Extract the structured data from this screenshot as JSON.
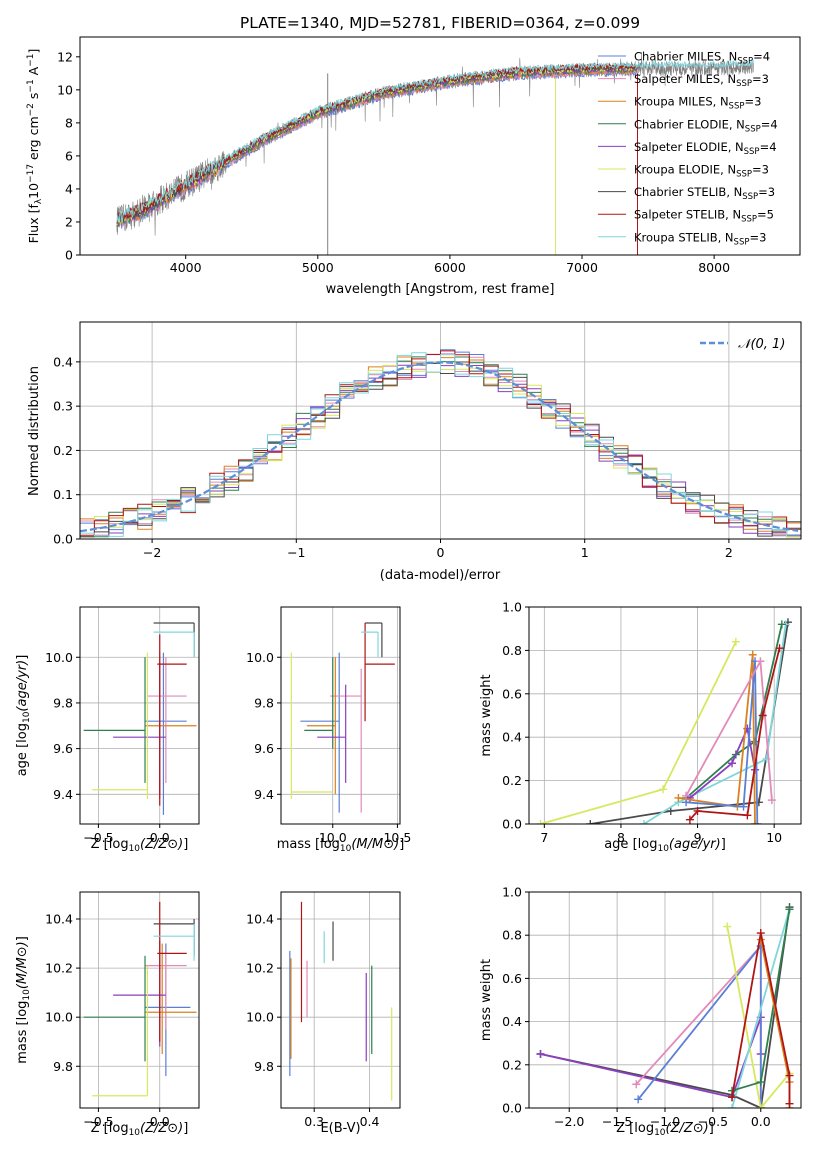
{
  "colors": {
    "chab_miles": "#5b7fd6",
    "salp_miles": "#e28ab9",
    "krou_miles": "#d9821f",
    "chab_elodie": "#2f7f4f",
    "salp_elodie": "#8a3fc0",
    "krou_elodie": "#d7e85e",
    "chab_stelib": "#4a4a4a",
    "salp_stelib": "#b01515",
    "krou_stelib": "#7fd6dc",
    "data": "#808080",
    "grid": "#b0b0b0",
    "normal": "#5b8fd6"
  },
  "chart_data": [
    {
      "id": "spectrum",
      "type": "line",
      "title": "PLATE=1340, MJD=52781, FIBERID=0364, z=0.099",
      "xlabel": "wavelength [Angstrom, rest frame]",
      "ylabel": "Flux [f_λ10^-17 erg cm^-2 s^-1 A^-1]",
      "xlim": [
        3200,
        8650
      ],
      "ylim": [
        0,
        13.2
      ],
      "xticks": [
        "4000",
        "5000",
        "6000",
        "7000",
        "8000"
      ],
      "yticks": [
        "0",
        "2",
        "4",
        "6",
        "8",
        "10",
        "12"
      ],
      "grid": false,
      "legend_position": "right",
      "legend": [
        "Chabrier MILES, N_SSP=4",
        "Salpeter MILES, N_SSP=3",
        "Kroupa MILES, N_SSP=3",
        "Chabrier ELODIE, N_SSP=4",
        "Salpeter ELODIE, N_SSP=4",
        "Kroupa ELODIE, N_SSP=3",
        "Chabrier STELIB, N_SSP=3",
        "Salpeter STELIB, N_SSP=5",
        "Kroupa STELIB, N_SSP=3"
      ],
      "continuum": {
        "x": [
          3500,
          3700,
          4000,
          4300,
          4600,
          5000,
          5500,
          6000,
          6500,
          7000,
          7500,
          8000,
          8300
        ],
        "y": [
          2.1,
          2.8,
          4.2,
          5.6,
          7.0,
          8.6,
          9.8,
          10.5,
          11.0,
          11.2,
          11.3,
          11.3,
          11.4
        ]
      }
    },
    {
      "id": "residuals",
      "type": "histogram",
      "xlabel": "(data-model)/error",
      "ylabel": "Normed distribution",
      "xlim": [
        -2.5,
        2.5
      ],
      "ylim": [
        0,
        0.49
      ],
      "xticks": [
        "−2",
        "−1",
        "0",
        "1",
        "2"
      ],
      "yticks": [
        "0.0",
        "0.1",
        "0.2",
        "0.3",
        "0.4"
      ],
      "grid": true,
      "legend_position": "top-right",
      "legend": [
        "𝒩(0, 1)"
      ]
    },
    {
      "id": "age_vs_Z",
      "type": "errorbar",
      "xlabel": "Z [log10(Z/Z⊙)]",
      "ylabel": "age [log10(age/yr)]",
      "xlim": [
        -0.65,
        0.32
      ],
      "ylim": [
        9.27,
        10.22
      ],
      "xticks": [
        "−0.5",
        "0.0"
      ],
      "yticks": [
        "9.4",
        "9.6",
        "9.8",
        "10.0"
      ],
      "grid": true,
      "points": [
        {
          "m": "chab_miles",
          "x": 0.03,
          "y": 9.72,
          "xe": [
            -0.12,
            0.22
          ],
          "ye": [
            9.31,
            10.02
          ]
        },
        {
          "m": "salp_miles",
          "x": 0.05,
          "y": 9.83,
          "xe": [
            -0.1,
            0.22
          ],
          "ye": [
            9.45,
            10.0
          ]
        },
        {
          "m": "krou_miles",
          "x": 0.0,
          "y": 9.7,
          "xe": [
            -0.12,
            0.3
          ],
          "ye": [
            9.38,
            10.02
          ]
        },
        {
          "m": "chab_elodie",
          "x": -0.12,
          "y": 9.68,
          "xe": [
            -0.62,
            -0.12
          ],
          "ye": [
            9.45,
            10.0
          ]
        },
        {
          "m": "salp_elodie",
          "x": 0.0,
          "y": 9.65,
          "xe": [
            -0.38,
            0.05
          ],
          "ye": [
            9.4,
            9.98
          ]
        },
        {
          "m": "krou_elodie",
          "x": -0.1,
          "y": 9.42,
          "xe": [
            -0.55,
            -0.1
          ],
          "ye": [
            9.38,
            10.02
          ]
        },
        {
          "m": "chab_stelib",
          "x": 0.28,
          "y": 10.15,
          "xe": [
            -0.05,
            0.28
          ],
          "ye": [
            10.0,
            10.15
          ]
        },
        {
          "m": "salp_stelib",
          "x": 0.0,
          "y": 9.97,
          "xe": [
            -0.02,
            0.22
          ],
          "ye": [
            9.35,
            10.1
          ]
        },
        {
          "m": "krou_stelib",
          "x": 0.28,
          "y": 10.11,
          "xe": [
            -0.05,
            0.28
          ],
          "ye": [
            10.0,
            10.11
          ]
        }
      ]
    },
    {
      "id": "age_vs_mass",
      "type": "errorbar",
      "xlabel": "mass [log10(M/M⊙)]",
      "ylabel": "",
      "xlim": [
        9.6,
        10.52
      ],
      "ylim": [
        9.27,
        10.22
      ],
      "xticks": [
        "10.0",
        "10.5"
      ],
      "yticks": [
        "9.4",
        "9.6",
        "9.8",
        "10.0"
      ],
      "grid": true,
      "points": [
        {
          "m": "chab_miles",
          "x": 10.05,
          "y": 9.72,
          "xe": [
            9.75,
            10.05
          ],
          "ye": [
            9.32,
            10.02
          ]
        },
        {
          "m": "salp_miles",
          "x": 10.22,
          "y": 9.83,
          "xe": [
            9.98,
            10.22
          ],
          "ye": [
            9.32,
            9.95
          ]
        },
        {
          "m": "krou_miles",
          "x": 10.02,
          "y": 9.7,
          "xe": [
            9.8,
            10.02
          ],
          "ye": [
            9.4,
            10.0
          ]
        },
        {
          "m": "chab_elodie",
          "x": 10.0,
          "y": 9.68,
          "xe": [
            9.78,
            10.0
          ],
          "ye": [
            9.6,
            10.0
          ]
        },
        {
          "m": "salp_elodie",
          "x": 10.1,
          "y": 9.65,
          "xe": [
            9.88,
            10.1
          ],
          "ye": [
            9.45,
            9.88
          ]
        },
        {
          "m": "krou_elodie",
          "x": 9.68,
          "y": 9.41,
          "xe": [
            9.68,
            10.0
          ],
          "ye": [
            9.38,
            10.02
          ]
        },
        {
          "m": "chab_stelib",
          "x": 10.38,
          "y": 10.15,
          "xe": [
            10.25,
            10.38
          ],
          "ye": [
            10.0,
            10.15
          ]
        },
        {
          "m": "salp_stelib",
          "x": 10.25,
          "y": 9.97,
          "xe": [
            10.25,
            10.48
          ],
          "ye": [
            9.72,
            10.15
          ]
        },
        {
          "m": "krou_stelib",
          "x": 10.35,
          "y": 10.11,
          "xe": [
            10.22,
            10.35
          ],
          "ye": [
            10.0,
            10.11
          ]
        }
      ]
    },
    {
      "id": "weight_vs_age",
      "type": "line",
      "xlabel": "age [log10(age/yr)]",
      "ylabel": "mass weight",
      "xlim": [
        6.8,
        10.35
      ],
      "ylim": [
        0,
        1.0
      ],
      "xticks": [
        "7",
        "8",
        "9",
        "10"
      ],
      "yticks": [
        "0.0",
        "0.2",
        "0.4",
        "0.6",
        "0.8",
        "1.0"
      ],
      "grid": true,
      "series": [
        {
          "m": "krou_elodie",
          "x": [
            6.95,
            8.55,
            9.5
          ],
          "y": [
            0.0,
            0.16,
            0.84
          ]
        },
        {
          "m": "chab_stelib",
          "x": [
            7.6,
            8.65,
            9.8,
            10.18
          ],
          "y": [
            0.0,
            0.06,
            0.1,
            0.93
          ]
        },
        {
          "m": "krou_stelib",
          "x": [
            8.3,
            8.75,
            9.9,
            10.15
          ],
          "y": [
            0.0,
            0.1,
            0.3,
            0.92
          ]
        },
        {
          "m": "chab_elodie",
          "x": [
            8.85,
            9.5,
            9.75,
            10.1
          ],
          "y": [
            0.12,
            0.32,
            0.38,
            0.92
          ]
        },
        {
          "m": "salp_elodie",
          "x": [
            8.9,
            9.45,
            9.65,
            9.75
          ],
          "y": [
            0.12,
            0.28,
            0.44,
            0.25
          ]
        },
        {
          "m": "krou_miles",
          "x": [
            8.75,
            9.52,
            9.72,
            9.75
          ],
          "y": [
            0.12,
            0.08,
            0.78,
            0.0
          ]
        },
        {
          "m": "chab_miles",
          "x": [
            8.85,
            9.6,
            9.75,
            9.78
          ],
          "y": [
            0.1,
            0.08,
            0.75,
            0.0
          ]
        },
        {
          "m": "salp_miles",
          "x": [
            8.85,
            9.82,
            9.97
          ],
          "y": [
            0.13,
            0.75,
            0.11
          ]
        },
        {
          "m": "salp_stelib",
          "x": [
            8.9,
            9.0,
            9.65,
            9.85,
            10.07
          ],
          "y": [
            0.02,
            0.06,
            0.04,
            0.5,
            0.81
          ]
        }
      ]
    },
    {
      "id": "mass_vs_Z",
      "type": "errorbar",
      "xlabel": "Z [log10(Z/Z⊙)]",
      "ylabel": "mass [log10(M/M⊙)]",
      "xlim": [
        -0.65,
        0.32
      ],
      "ylim": [
        9.63,
        10.51
      ],
      "xticks": [
        "−0.5",
        "0.0"
      ],
      "yticks": [
        "9.8",
        "10.0",
        "10.2",
        "10.4"
      ],
      "grid": true,
      "points": [
        {
          "m": "chab_miles",
          "x": 0.05,
          "y": 10.04,
          "xe": [
            -0.12,
            0.25
          ],
          "ye": [
            9.76,
            10.3
          ]
        },
        {
          "m": "salp_miles",
          "x": 0.05,
          "y": 10.21,
          "xe": [
            -0.12,
            0.22
          ],
          "ye": [
            9.95,
            10.26
          ]
        },
        {
          "m": "krou_miles",
          "x": 0.02,
          "y": 10.02,
          "xe": [
            -0.12,
            0.3
          ],
          "ye": [
            9.85,
            10.3
          ]
        },
        {
          "m": "chab_elodie",
          "x": -0.12,
          "y": 10.0,
          "xe": [
            -0.62,
            -0.12
          ],
          "ye": [
            9.82,
            10.25
          ]
        },
        {
          "m": "salp_elodie",
          "x": 0.0,
          "y": 10.09,
          "xe": [
            -0.38,
            0.05
          ],
          "ye": [
            9.88,
            10.31
          ]
        },
        {
          "m": "krou_elodie",
          "x": -0.1,
          "y": 9.68,
          "xe": [
            -0.55,
            -0.1
          ],
          "ye": [
            9.68,
            10.21
          ]
        },
        {
          "m": "chab_stelib",
          "x": 0.28,
          "y": 10.38,
          "xe": [
            -0.05,
            0.28
          ],
          "ye": [
            10.25,
            10.4
          ]
        },
        {
          "m": "salp_stelib",
          "x": 0.0,
          "y": 10.26,
          "xe": [
            -0.02,
            0.22
          ],
          "ye": [
            9.9,
            10.47
          ]
        },
        {
          "m": "krou_stelib",
          "x": 0.28,
          "y": 10.33,
          "xe": [
            -0.05,
            0.28
          ],
          "ye": [
            10.23,
            10.38
          ]
        }
      ]
    },
    {
      "id": "mass_vs_EBV",
      "type": "errorbar",
      "xlabel": "E(B-V)",
      "ylabel": "",
      "xlim": [
        0.24,
        0.455
      ],
      "ylim": [
        9.63,
        10.51
      ],
      "xticks": [
        "0.3",
        "0.4"
      ],
      "yticks": [
        "9.8",
        "10.0",
        "10.2",
        "10.4"
      ],
      "grid": true,
      "points": [
        {
          "m": "chab_miles",
          "x": 0.256,
          "ye": [
            9.76,
            10.27
          ]
        },
        {
          "m": "krou_miles",
          "x": 0.258,
          "ye": [
            9.83,
            10.24
          ]
        },
        {
          "m": "salp_stelib",
          "x": 0.277,
          "ye": [
            9.98,
            10.47
          ]
        },
        {
          "m": "salp_miles",
          "x": 0.287,
          "ye": [
            10.0,
            10.23
          ]
        },
        {
          "m": "krou_stelib",
          "x": 0.318,
          "ye": [
            10.22,
            10.35
          ]
        },
        {
          "m": "chab_stelib",
          "x": 0.334,
          "ye": [
            10.23,
            10.39
          ]
        },
        {
          "m": "salp_elodie",
          "x": 0.394,
          "ye": [
            9.82,
            10.18
          ]
        },
        {
          "m": "chab_elodie",
          "x": 0.404,
          "ye": [
            9.85,
            10.21
          ]
        },
        {
          "m": "krou_elodie",
          "x": 0.44,
          "ye": [
            9.66,
            10.04
          ]
        }
      ]
    },
    {
      "id": "weight_vs_Z",
      "type": "line",
      "xlabel": "Z [log10(Z/Z⊙)]",
      "ylabel": "mass weight",
      "xlim": [
        -2.42,
        0.42
      ],
      "ylim": [
        0,
        1.0
      ],
      "xticks": [
        "−2.0",
        "−1.5",
        "−1.0",
        "−0.5",
        "0.0"
      ],
      "yticks": [
        "0.0",
        "0.2",
        "0.4",
        "0.6",
        "0.8",
        "1.0"
      ],
      "grid": true,
      "series": [
        {
          "m": "chab_stelib",
          "x": [
            -2.3,
            -0.3,
            0.0,
            0.3
          ],
          "y": [
            0.25,
            0.06,
            0.0,
            0.93
          ]
        },
        {
          "m": "salp_elodie",
          "x": [
            -2.3,
            -0.3,
            0.0,
            0.0
          ],
          "y": [
            0.25,
            0.05,
            0.42,
            0.25
          ]
        },
        {
          "m": "salp_miles",
          "x": [
            -1.3,
            0.0,
            0.0
          ],
          "y": [
            0.11,
            0.75,
            0.0
          ]
        },
        {
          "m": "chab_miles",
          "x": [
            -1.28,
            0.0,
            0.0
          ],
          "y": [
            0.04,
            0.75,
            0.0
          ]
        },
        {
          "m": "krou_elodie",
          "x": [
            -0.35,
            0.0,
            0.3
          ],
          "y": [
            0.84,
            0.0,
            0.16
          ]
        },
        {
          "m": "krou_stelib",
          "x": [
            -0.3,
            0.3
          ],
          "y": [
            0.0,
            0.92
          ]
        },
        {
          "m": "chab_elodie",
          "x": [
            -0.3,
            0.0,
            0.3
          ],
          "y": [
            0.08,
            0.12,
            0.92
          ]
        },
        {
          "m": "krou_miles",
          "x": [
            0.0,
            0.3,
            0.3
          ],
          "y": [
            0.78,
            0.12,
            0.0
          ]
        },
        {
          "m": "salp_stelib",
          "x": [
            -0.3,
            0.0,
            0.3,
            0.3
          ],
          "y": [
            0.05,
            0.81,
            0.15,
            0.02
          ]
        }
      ]
    }
  ]
}
